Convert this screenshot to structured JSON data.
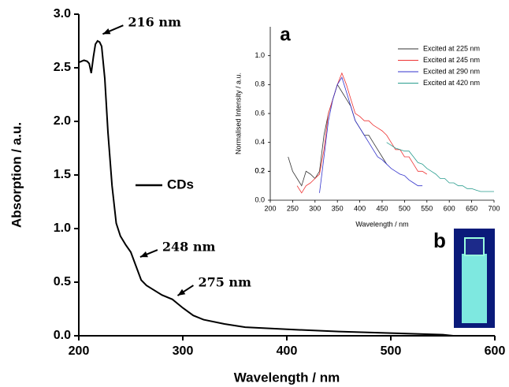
{
  "chart_data": [
    {
      "type": "line",
      "xlabel": "Wavelength / nm",
      "ylabel": "Absorption / a.u.",
      "xlim": [
        200,
        600
      ],
      "ylim": [
        0,
        3.0
      ],
      "xticks": [
        200,
        300,
        400,
        500,
        600
      ],
      "yticks": [
        {
          "value": 0,
          "label": "0.0"
        },
        0.5,
        {
          "value": 1,
          "label": "1.0"
        },
        1.5,
        {
          "value": 2,
          "label": "2.0"
        },
        2.5,
        {
          "value": 3,
          "label": "3.0"
        }
      ],
      "series": [
        {
          "name": "CDs",
          "color": "#000000",
          "x": [
            200,
            205,
            208,
            210,
            212,
            214,
            216,
            218,
            220,
            222,
            225,
            228,
            232,
            236,
            240,
            245,
            250,
            255,
            260,
            265,
            270,
            280,
            290,
            300,
            310,
            320,
            340,
            360,
            400,
            450,
            500,
            550,
            560
          ],
          "values": [
            2.55,
            2.57,
            2.56,
            2.54,
            2.45,
            2.6,
            2.72,
            2.75,
            2.74,
            2.7,
            2.4,
            1.9,
            1.4,
            1.05,
            0.93,
            0.85,
            0.78,
            0.65,
            0.52,
            0.47,
            0.44,
            0.38,
            0.34,
            0.26,
            0.19,
            0.15,
            0.11,
            0.08,
            0.06,
            0.04,
            0.025,
            0.01,
            0.0
          ]
        }
      ],
      "annotations": [
        {
          "text": "216 nm",
          "x": 220,
          "y": 2.8
        },
        {
          "text": "248 nm",
          "x": 256,
          "y": 0.72
        },
        {
          "text": "275 nm",
          "x": 292,
          "y": 0.36
        }
      ]
    },
    {
      "type": "line",
      "panel_label": "a",
      "xlabel": "Wavelength / nm",
      "ylabel": "Normalised Intensity / a.u.",
      "xlim": [
        200,
        700
      ],
      "ylim": [
        0,
        1.2
      ],
      "xticks": [
        200,
        250,
        300,
        350,
        400,
        450,
        500,
        550,
        600,
        650,
        700
      ],
      "yticks": [
        {
          "value": 0,
          "label": "0.0"
        },
        0.2,
        0.4,
        0.6,
        0.8,
        {
          "value": 1,
          "label": "1.0"
        },
        0.2
      ],
      "series": [
        {
          "name": "Excited at 225 nm",
          "color": "#333333",
          "x": [
            240,
            250,
            260,
            270,
            280,
            290,
            300,
            310,
            320,
            330,
            340,
            350,
            360,
            370,
            380,
            390,
            400,
            410,
            420,
            430,
            440,
            450,
            460
          ],
          "values": [
            0.3,
            0.2,
            0.15,
            0.1,
            0.2,
            0.18,
            0.15,
            0.2,
            0.45,
            0.6,
            0.7,
            0.8,
            0.75,
            0.7,
            0.65,
            0.55,
            0.5,
            0.45,
            0.45,
            0.4,
            0.35,
            0.3,
            0.25
          ]
        },
        {
          "name": "Excited at 245 nm",
          "color": "#ee3333",
          "x": [
            260,
            270,
            280,
            290,
            300,
            310,
            320,
            330,
            340,
            350,
            360,
            370,
            380,
            390,
            400,
            410,
            420,
            430,
            440,
            450,
            460,
            470,
            480,
            490,
            500,
            510,
            520,
            530,
            540,
            550
          ],
          "values": [
            0.1,
            0.05,
            0.1,
            0.12,
            0.15,
            0.18,
            0.35,
            0.6,
            0.7,
            0.8,
            0.88,
            0.8,
            0.7,
            0.6,
            0.58,
            0.55,
            0.55,
            0.52,
            0.5,
            0.48,
            0.45,
            0.4,
            0.35,
            0.35,
            0.3,
            0.3,
            0.25,
            0.2,
            0.2,
            0.18
          ]
        },
        {
          "name": "Excited at 290 nm",
          "color": "#3333cc",
          "x": [
            310,
            320,
            330,
            340,
            350,
            360,
            370,
            380,
            390,
            400,
            410,
            420,
            430,
            440,
            450,
            460,
            470,
            480,
            490,
            500,
            510,
            520,
            530,
            540
          ],
          "values": [
            0.05,
            0.3,
            0.55,
            0.7,
            0.8,
            0.85,
            0.75,
            0.65,
            0.55,
            0.5,
            0.45,
            0.4,
            0.35,
            0.3,
            0.28,
            0.25,
            0.22,
            0.2,
            0.18,
            0.17,
            0.14,
            0.12,
            0.1,
            0.1
          ]
        },
        {
          "name": "Excited at 420 nm",
          "color": "#2a9d8f",
          "x": [
            460,
            470,
            480,
            490,
            500,
            510,
            520,
            530,
            540,
            550,
            560,
            570,
            580,
            590,
            600,
            610,
            620,
            630,
            640,
            650,
            660,
            670,
            680,
            690,
            700
          ],
          "values": [
            0.4,
            0.38,
            0.36,
            0.35,
            0.34,
            0.34,
            0.3,
            0.26,
            0.25,
            0.22,
            0.2,
            0.18,
            0.15,
            0.15,
            0.12,
            0.12,
            0.1,
            0.1,
            0.08,
            0.08,
            0.07,
            0.06,
            0.06,
            0.06,
            0.06
          ]
        }
      ]
    }
  ],
  "photo": {
    "label": "b"
  }
}
